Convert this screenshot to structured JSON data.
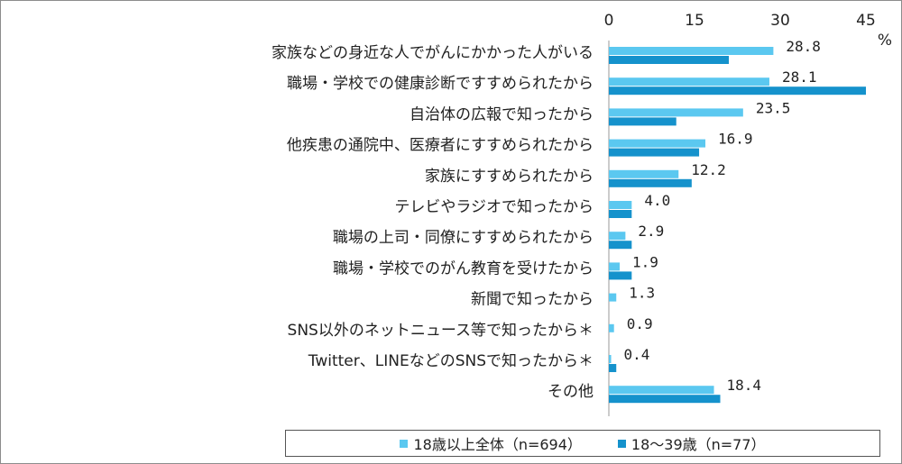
{
  "chart_data": {
    "type": "bar",
    "orientation": "horizontal",
    "unit": "%",
    "xlim": [
      0,
      45
    ],
    "ticks": [
      "0",
      "15",
      "30",
      "45"
    ],
    "categories": [
      "家族などの身近な人でがんにかかった人がいる",
      "職場・学校での健康診断ですすめられたから",
      "自治体の広報で知ったから",
      "他疾患の通院中、医療者にすすめられたから",
      "家族にすすめられたから",
      "テレビやラジオで知ったから",
      "職場の上司・同僚にすすめられたから",
      "職場・学校でのがん教育を受けたから",
      "新聞で知ったから",
      "SNS以外のネットニュース等で知ったから＊",
      "Twitter、LINEなどのSNSで知ったから＊",
      "その他"
    ],
    "series": [
      {
        "name": "18歳以上全体（n=694）",
        "color": "#5bc8f0",
        "values": [
          28.8,
          28.1,
          23.5,
          16.9,
          12.2,
          4.0,
          2.9,
          1.9,
          1.3,
          0.9,
          0.4,
          18.4
        ],
        "labels": [
          "28.8",
          "28.1",
          "23.5",
          "16.9",
          "12.2",
          "4.0",
          "2.9",
          "1.9",
          "1.3",
          "0.9",
          "0.4",
          "18.4"
        ]
      },
      {
        "name": "18～39歳（n=77）",
        "color": "#1592cc",
        "values": [
          21.0,
          45.0,
          11.8,
          15.8,
          14.5,
          4.0,
          4.0,
          4.0,
          0.0,
          0.0,
          1.3,
          19.5
        ]
      }
    ],
    "legend_position": "bottom"
  }
}
